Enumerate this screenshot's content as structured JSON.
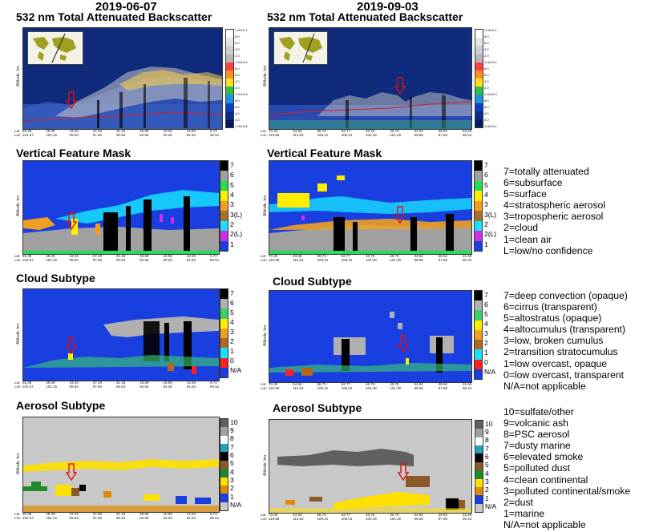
{
  "dates": {
    "left": "2019-06-07",
    "right": "2019-09-03"
  },
  "rows": [
    {
      "left_title": "532 nm Total Attenuated Backscatter",
      "right_title": "532 nm Total Attenuated Backscatter"
    },
    {
      "left_title": "Vertical Feature Mask",
      "right_title": "Vertical Feature Mask"
    },
    {
      "left_title": "Cloud Subtype",
      "right_title": "Cloud Subtype"
    },
    {
      "left_title": "Aerosol Subtype",
      "right_title": "Aerosol Subtype"
    }
  ],
  "y_axis_label": "Altitude, km",
  "x_axis": {
    "left": {
      "lat": [
        "55.38",
        "49.39",
        "43.33",
        "37.28",
        "31.19",
        "25.09",
        "18.06",
        "12.83",
        "6.74"
      ],
      "lon": [
        "104.57",
        "102.16",
        "99.83",
        "97.66",
        "95.63",
        "94.65",
        "93.25",
        "91.83",
        "90.51"
      ]
    },
    "right": {
      "lat": [
        "70.30",
        "64.66",
        "58.73",
        "52.77",
        "46.75",
        "40.70",
        "34.62",
        "28.52",
        "22.45"
      ],
      "lon": [
        "119.88",
        "113.54",
        "109.21",
        "106.01",
        "103.48",
        "101.39",
        "99.56",
        "97.95",
        "96.44"
      ]
    },
    "row_labels": [
      "Lat",
      "Lon"
    ]
  },
  "colorbars": {
    "vfm": [
      "7",
      "6",
      "5",
      "4",
      "3",
      "3(L)",
      "2",
      "2(L)",
      "1"
    ],
    "cloud": [
      "7",
      "6",
      "5",
      "4",
      "3",
      "2",
      "1",
      "0",
      "N/A"
    ],
    "aerosol": [
      "10",
      "9",
      "8",
      "7",
      "6",
      "5",
      "4",
      "3",
      "2",
      "1",
      "N/A"
    ]
  },
  "colors": {
    "vfm": [
      "#000000",
      "#a0a0a0",
      "#22dd55",
      "#ffee00",
      "#f0a020",
      "#a87030",
      "#18e0ff",
      "#d030e0",
      "#1a3fe0"
    ],
    "cloud": [
      "#000000",
      "#b0b0b0",
      "#3cd06a",
      "#ffee00",
      "#f0a020",
      "#b06a20",
      "#18e0ff",
      "#ff2020",
      "#1a3fe0"
    ],
    "aerosol": [
      "#606060",
      "#a0a0a0",
      "#ffffff",
      "#1fa3b5",
      "#000000",
      "#8b5a2b",
      "#1e8b2a",
      "#ffe000",
      "#e08a00",
      "#1a3fe0",
      "#c8c8c8"
    ]
  },
  "legends": {
    "vfm": [
      "7=totally attenuated",
      "6=subsurface",
      "5=surface",
      "4=stratospheric aerosol",
      "3=tropospheric aerosol",
      "2=cloud",
      "1=clean air",
      "L=low/no confidence"
    ],
    "cloud": [
      "7=deep convection (opaque)",
      "6=cirrus (transparent)",
      "5=altostratus (opaque)",
      "4=altocumulus (transparent)",
      "3=low, broken cumulus",
      "2=transition stratocumulus",
      "1=low overcast, opaque",
      "0=low overcast, transparent",
      "N/A=not applicable"
    ],
    "aerosol": [
      "10=sulfate/other",
      "9=volcanic ash",
      "8=PSC aerosol",
      "7=dusty marine",
      "6=elevated smoke",
      "5=polluted dust",
      "4=clean continental",
      "3=polluted continental/smoke",
      "2=dust",
      "1=marine",
      "N/A=not applicable"
    ]
  },
  "backscatter_scale": [
    "1.0x10-1",
    "8.0",
    "6.0",
    "4.0",
    "2.0",
    "1.0x10-2",
    "8.0",
    "6.0",
    "4.0",
    "2.0",
    "1.0x10-3",
    "8.0",
    "6.0",
    "4.0",
    "2.0",
    "1.0x10-4"
  ]
}
